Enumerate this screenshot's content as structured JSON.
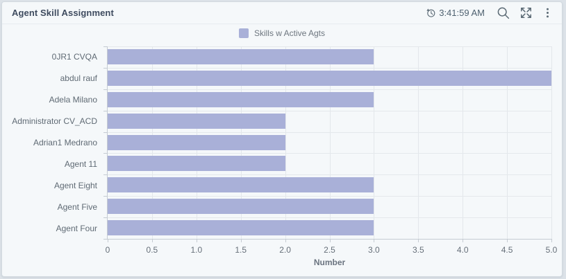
{
  "header": {
    "title": "Agent Skill Assignment",
    "refresh_time": "3:41:59 AM"
  },
  "chart_data": {
    "type": "bar",
    "orientation": "horizontal",
    "title": "Agent Skill Assignment",
    "categories": [
      "0JR1 CVQA",
      "abdul rauf",
      "Adela Milano",
      "Administrator CV_ACD",
      "Adrian1 Medrano",
      "Agent 11",
      "Agent Eight",
      "Agent Five",
      "Agent Four"
    ],
    "series": [
      {
        "name": "Skills w Active Agts",
        "color": "#a9b0d8",
        "values": [
          3,
          5,
          3,
          2,
          2,
          2,
          3,
          3,
          3
        ]
      }
    ],
    "xlabel": "Number",
    "ylabel": "",
    "xlim": [
      0,
      5
    ],
    "x_tick_labels": [
      "0",
      "0.5",
      "1.0",
      "1.5",
      "2.0",
      "2.5",
      "3.0",
      "3.5",
      "4.0",
      "4.5",
      "5.0"
    ],
    "grid": true,
    "legend_position": "top-center"
  },
  "colors": {
    "bar": "#a9b0d8",
    "grid_line": "#e3e7eb",
    "axis_line": "#c5cbd2",
    "title_text": "#3e4b5f",
    "label_text": "#5f6a74",
    "icon": "#5b6a75",
    "card_background": "#f5f8fa",
    "page_background": "#dce2e8"
  }
}
